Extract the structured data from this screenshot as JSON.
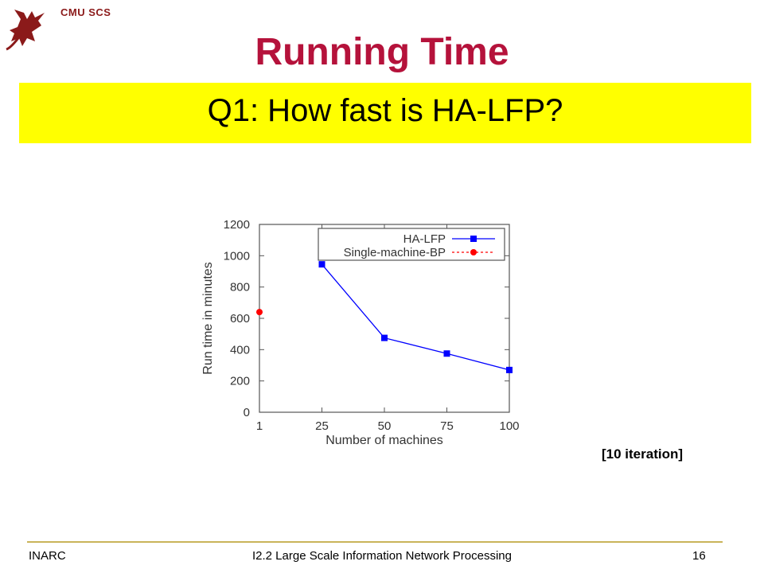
{
  "header": {
    "org": "CMU SCS",
    "title": "Running Time",
    "question": "Q1: How fast is HA-LFP?"
  },
  "note": "[10 iteration]",
  "footer": {
    "left": "INARC",
    "center": "I2.2 Large Scale Information Network Processing",
    "page": "16"
  },
  "colors": {
    "title": "#b5123b",
    "banner": "#ffff00",
    "series_ha_lfp": "#0000ff",
    "series_single_bp": "#ff0000"
  },
  "icons": {
    "logo": "griffin-logo-icon"
  },
  "chart_data": {
    "type": "line",
    "xlabel": "Number of machines",
    "ylabel": "Run time in minutes",
    "categories": [
      "1",
      "25",
      "50",
      "75",
      "100"
    ],
    "ylim": [
      0,
      1200
    ],
    "yticks": [
      0,
      200,
      400,
      600,
      800,
      1000,
      1200
    ],
    "legend_position": "top-right",
    "series": [
      {
        "name": "HA-LFP",
        "x": [
          "25",
          "50",
          "75",
          "100"
        ],
        "values": [
          945,
          475,
          375,
          270
        ],
        "color": "#0000ff",
        "marker": "square",
        "line": "solid"
      },
      {
        "name": "Single-machine-BP",
        "x": [
          "1"
        ],
        "values": [
          640
        ],
        "color": "#ff0000",
        "marker": "circle",
        "line": "dashed"
      }
    ]
  }
}
